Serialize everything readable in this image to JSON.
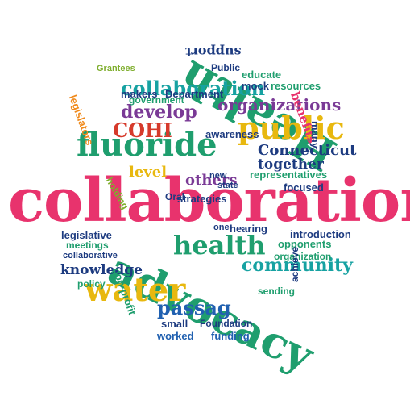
{
  "colors": {
    "pink": "#e8336d",
    "green": "#1f9e6e",
    "teal": "#17a2a2",
    "blue": "#2060b0",
    "navy": "#1d3b80",
    "purple": "#7a3a96",
    "orange": "#f08a1c",
    "yellow": "#e8b80f",
    "red": "#d63a2b",
    "olive": "#7fae2e"
  },
  "words": {
    "collaboration": "collaboration",
    "advocacy": "advocacy",
    "health_big": "Health",
    "fluoride": "fluoride",
    "public": "public",
    "water": "water",
    "health_mid": "health",
    "collaboration_2": "collaboration",
    "cohi": "COHI",
    "passage": "passag",
    "community": "community",
    "develop": "develop",
    "organizations": "organizations",
    "connecticut": "Connecticut",
    "support": "support",
    "together": "together",
    "others": "others",
    "benefits": "benefits",
    "level": "level",
    "knowledge": "knowledge",
    "educate": "educate",
    "makers": "makers",
    "department": "Department",
    "mock": "mock",
    "resources": "resources",
    "awareness": "awareness",
    "government": "government",
    "grantees": "Grantees",
    "legislators": "legislators",
    "public_small": "Public",
    "strategies": "strategies",
    "representatives": "representatives",
    "focused": "focused",
    "introduction": "introduction",
    "legislative": "legislative",
    "hearing": "hearing",
    "opponents": "opponents",
    "meetings": "meetings",
    "collaborative": "collaborative",
    "organization": "organization",
    "policy": "policy",
    "non_profit": "non-profit",
    "small": "small",
    "foundation": "Foundation",
    "sending": "sending",
    "worked": "worked",
    "funding": "funding",
    "achieve": "achieve",
    "many": "many",
    "state": "state",
    "new": "new",
    "oral": "Oral",
    "one": "one",
    "holding": "holding"
  }
}
